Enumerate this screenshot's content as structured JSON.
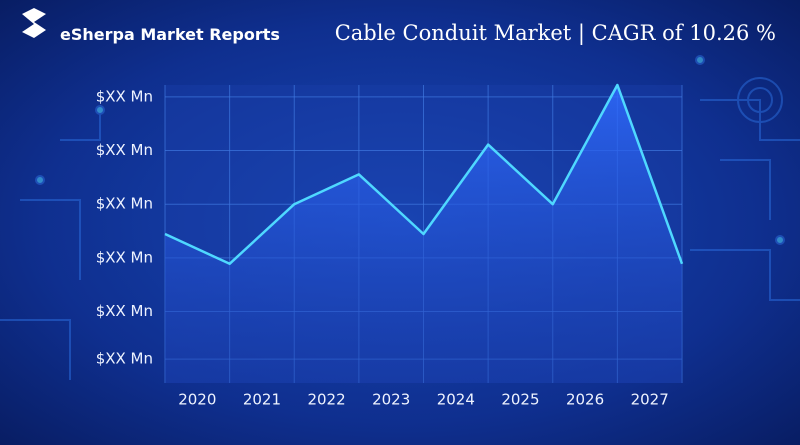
{
  "brand": "eSherpa Market Reports",
  "chart_data": {
    "type": "line",
    "title": "Cable Conduit Market | CAGR of 10.26 %",
    "x": [
      2019.5,
      2020.5,
      2021.5,
      2022.5,
      2023.5,
      2024.5,
      2025.5,
      2026.5,
      2027.5
    ],
    "values": [
      5,
      4,
      6,
      7,
      5,
      8,
      6,
      10,
      4
    ],
    "color": "#4fd8ff",
    "xlim": [
      2019.5,
      2027.5
    ],
    "xticks": [
      2020,
      2021,
      2022,
      2023,
      2024,
      2025,
      2026,
      2027
    ],
    "ylim": [
      0,
      10
    ],
    "yticks": [
      {
        "value": 0.8,
        "label": "$XX Mn"
      },
      {
        "value": 2.4,
        "label": "$XX Mn"
      },
      {
        "value": 4.2,
        "label": "$XX Mn"
      },
      {
        "value": 6,
        "label": "$XX Mn"
      },
      {
        "value": 7.8,
        "label": "$XX Mn"
      },
      {
        "value": 9.6,
        "label": "$XX Mn"
      }
    ],
    "grid": true
  }
}
